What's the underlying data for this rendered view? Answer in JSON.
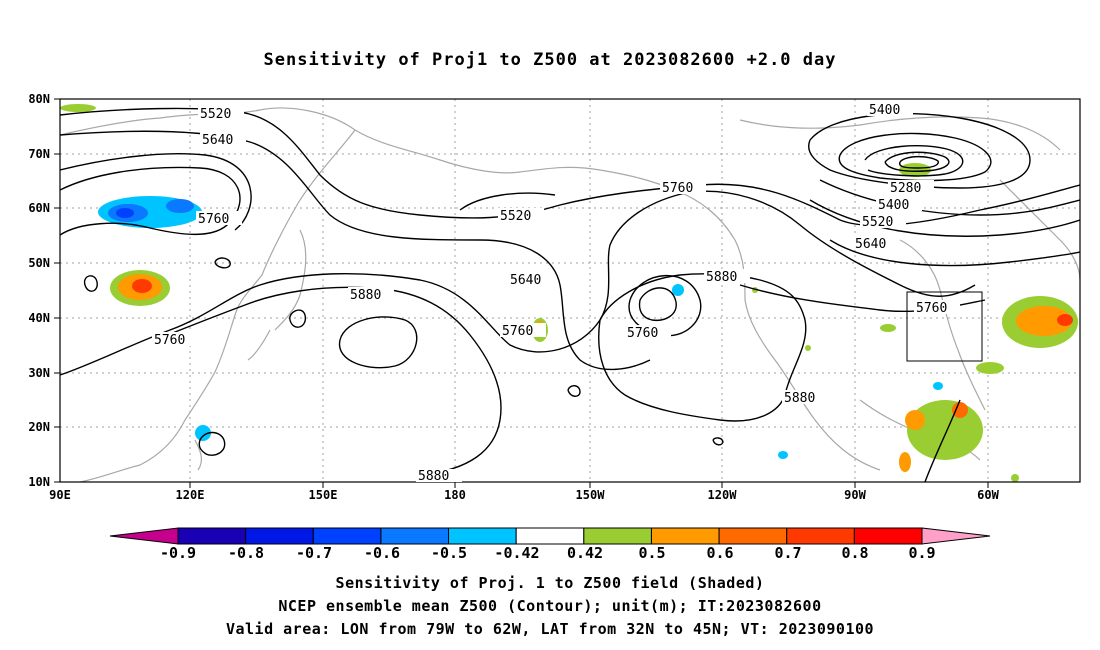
{
  "title": "Sensitivity of Proj1 to Z500 at 2023082600 +2.0 day",
  "axes": {
    "lat_labels": [
      "80N",
      "70N",
      "60N",
      "50N",
      "40N",
      "30N",
      "20N",
      "10N"
    ],
    "lon_labels": [
      "90E",
      "120E",
      "150E",
      "180",
      "150W",
      "120W",
      "90W",
      "60W"
    ]
  },
  "contour_labels": [
    "5520",
    "5640",
    "5760",
    "5880",
    "5520",
    "5640",
    "5760",
    "5760",
    "5760",
    "5880",
    "5880",
    "5400",
    "5280",
    "5400",
    "5520",
    "5640",
    "5760",
    "5880",
    "5760"
  ],
  "colorbar": {
    "labels": [
      "-0.9",
      "-0.8",
      "-0.7",
      "-0.6",
      "-0.5",
      "-0.42",
      "0.42",
      "0.5",
      "0.6",
      "0.7",
      "0.8",
      "0.9"
    ],
    "colors": [
      "#c4008c",
      "#1a00b4",
      "#0018e6",
      "#0041ff",
      "#0a78ff",
      "#00c4ff",
      "#ffffff",
      "#9acd32",
      "#ff9a00",
      "#ff6a00",
      "#ff3a00",
      "#ff0000",
      "#ffa0c8"
    ]
  },
  "captions": [
    "Sensitivity of Proj. 1 to Z500 field (Shaded)",
    "NCEP ensemble mean Z500 (Contour); unit(m); IT:2023082600",
    "Valid area: LON from 79W to 62W, LAT from 32N to 45N; VT: 2023090100"
  ],
  "colors": {
    "contour": "#000000",
    "coast": "#a8a8a8",
    "grid": "#a0a0a0",
    "box": "#000000"
  }
}
